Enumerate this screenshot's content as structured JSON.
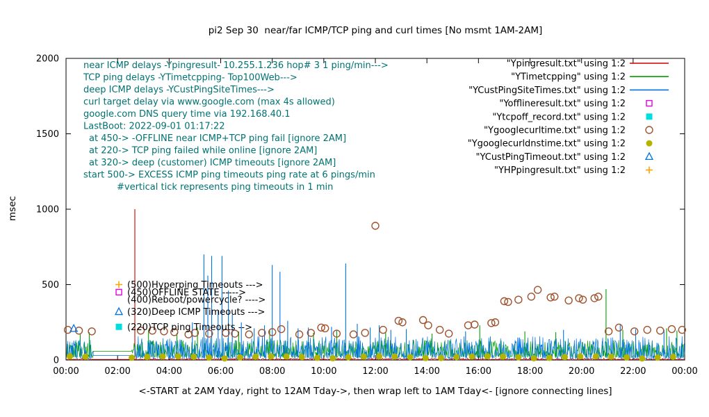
{
  "chart_data": {
    "type": "line",
    "title": "pi2 Sep 30  near/far ICMP/TCP ping and curl times [No msmt 1AM-2AM]",
    "xlabel": "<-START at 2AM Yday, right to 12AM Tday->, then wrap left to 1AM Tday<- [ignore connecting lines]",
    "ylabel": "msec",
    "xlim": [
      0,
      24
    ],
    "ylim": [
      0,
      2000
    ],
    "grid": false,
    "legend_position": "top-right-inside",
    "annotation_color": "#007272",
    "x_ticks": [
      {
        "t": 0,
        "label": "00:00"
      },
      {
        "t": 2,
        "label": "02:00"
      },
      {
        "t": 4,
        "label": "04:00"
      },
      {
        "t": 6,
        "label": "06:00"
      },
      {
        "t": 8,
        "label": "08:00"
      },
      {
        "t": 10,
        "label": "10:00"
      },
      {
        "t": 12,
        "label": "12:00"
      },
      {
        "t": 14,
        "label": "14:00"
      },
      {
        "t": 16,
        "label": "16:00"
      },
      {
        "t": 18,
        "label": "18:00"
      },
      {
        "t": 20,
        "label": "20:00"
      },
      {
        "t": 22,
        "label": "22:00"
      },
      {
        "t": 24,
        "label": "00:00"
      }
    ],
    "y_ticks": [
      0,
      500,
      1000,
      1500,
      2000
    ],
    "annotations": [
      {
        "text": "near ICMP delays -Ypingresult- 10.255.1.236 hop# 3 1 ping/min--->",
        "indent": 0
      },
      {
        "text": "TCP ping delays -YTimetcpping- Top100Web--->",
        "indent": 0
      },
      {
        "text": "deep ICMP delays -YCustPingSiteTimes--->",
        "indent": 0
      },
      {
        "text": "curl target delay via www.google.com (max 4s allowed)",
        "indent": 0
      },
      {
        "text": "google.com DNS query time via 192.168.40.1",
        "indent": 0
      },
      {
        "text": "LastBoot: 2022-09-01 01:17:22",
        "indent": 0
      },
      {
        "text": "at 450-> -OFFLINE near ICMP+TCP ping fail [ignore 2AM]",
        "indent": 8
      },
      {
        "text": "at 220-> TCP ping failed while online [ignore 2AM]",
        "indent": 8
      },
      {
        "text": "at 320-> deep (customer) ICMP timeouts [ignore 2AM]",
        "indent": 8
      },
      {
        "text": "start 500-> EXCESS ICMP ping timeouts ping rate at 6 pings/min",
        "indent": 0
      },
      {
        "text": "#vertical tick represents ping timeouts in 1 min",
        "indent": 48
      }
    ],
    "key_annotations": [
      {
        "x": 2.05,
        "y": 500,
        "marker": "plus",
        "color": "#ffa500",
        "text": "(500)Hyperping Timeouts --->"
      },
      {
        "x": 2.05,
        "y": 450,
        "marker": "open-square",
        "color": "#e600e6",
        "text": "(450)OFFLINE STATE ----->"
      },
      {
        "x": 2.05,
        "y": 400,
        "marker": "none",
        "color": "#000000",
        "text": "(400)Reboot/powercycle? ---->"
      },
      {
        "x": 2.05,
        "y": 320,
        "marker": "open-triangle",
        "color": "#0073e0",
        "text": "(320)Deep ICMP Timeouts --->"
      },
      {
        "x": 2.05,
        "y": 220,
        "marker": "filled-square",
        "color": "#00dede",
        "text": "(220)TCP ping Timeouts -->"
      }
    ],
    "legend": [
      {
        "label": "\"Ypingresult.txt\" using 1:2",
        "type": "line",
        "color": "#cc0000"
      },
      {
        "label": "\"YTimetcpping\" using 1:2",
        "type": "line",
        "color": "#00a000"
      },
      {
        "label": "\"YCustPingSiteTimes.txt\" using 1:2",
        "type": "line",
        "color": "#0073e0"
      },
      {
        "label": "\"Yofflineresult.txt\" using 1:2",
        "type": "marker",
        "marker": "open-square",
        "color": "#e600e6"
      },
      {
        "label": "\"Ytcpoff_record.txt\" using 1:2",
        "type": "marker",
        "marker": "filled-square",
        "color": "#00dede"
      },
      {
        "label": "\"Ygooglecurltime.txt\" using 1:2",
        "type": "marker",
        "marker": "open-circle",
        "color": "#a0522d"
      },
      {
        "label": "\"Ygooglecurldnstime.txt\" using 1:2",
        "type": "marker",
        "marker": "filled-circle",
        "color": "#b4b400"
      },
      {
        "label": "\"YCustPingTimeout.txt\" using 1:2",
        "type": "marker",
        "marker": "open-triangle",
        "color": "#0073e0"
      },
      {
        "label": "\"YHPpingresult.txt\" using 1:2",
        "type": "marker",
        "marker": "plus",
        "color": "#ffa500"
      }
    ],
    "series": [
      {
        "name": "Ypingresult",
        "type": "noisy-line",
        "color": "#cc0000",
        "seed": 11,
        "baseline": 2,
        "noise": 10,
        "gaps": [
          [
            1.05,
            2.55
          ]
        ],
        "gap_y": 4,
        "spikes": [
          [
            2.67,
            1000
          ]
        ]
      },
      {
        "name": "YTimetcpping",
        "type": "noisy-line",
        "color": "#00a000",
        "seed": 22,
        "baseline": 18,
        "noise": 115,
        "gaps": [
          [
            1.05,
            2.55
          ]
        ],
        "gap_y": 58,
        "spikes": [
          [
            0.55,
            170
          ],
          [
            0.9,
            185
          ],
          [
            3.2,
            200
          ],
          [
            4.3,
            180
          ],
          [
            5.1,
            215
          ],
          [
            6.7,
            190
          ],
          [
            7.9,
            200
          ],
          [
            9.6,
            180
          ],
          [
            10.5,
            195
          ],
          [
            12.4,
            185
          ],
          [
            14.2,
            175
          ],
          [
            16.05,
            230
          ],
          [
            17.8,
            190
          ],
          [
            19.0,
            185
          ],
          [
            20.95,
            470
          ],
          [
            21.6,
            200
          ],
          [
            23.3,
            210
          ],
          [
            23.7,
            195
          ]
        ]
      },
      {
        "name": "YCustPingSiteTimes",
        "type": "noisy-line",
        "color": "#0073e0",
        "seed": 33,
        "baseline": 8,
        "noise": 150,
        "gaps": [
          [
            1.05,
            2.55
          ]
        ],
        "gap_y": 30,
        "spikes": [
          [
            4.9,
            250
          ],
          [
            5.35,
            700
          ],
          [
            5.5,
            560
          ],
          [
            5.65,
            690
          ],
          [
            5.9,
            330
          ],
          [
            6.05,
            690
          ],
          [
            6.3,
            460
          ],
          [
            6.45,
            300
          ],
          [
            6.8,
            250
          ],
          [
            7.3,
            210
          ],
          [
            7.7,
            230
          ],
          [
            8.0,
            630
          ],
          [
            8.3,
            585
          ],
          [
            8.6,
            260
          ],
          [
            9.0,
            210
          ],
          [
            9.4,
            215
          ],
          [
            10.3,
            220
          ],
          [
            10.85,
            640
          ],
          [
            11.3,
            240
          ],
          [
            11.8,
            215
          ],
          [
            12.15,
            230
          ],
          [
            12.6,
            200
          ],
          [
            13.2,
            205
          ],
          [
            15.5,
            190
          ],
          [
            19.3,
            200
          ],
          [
            21.5,
            235
          ],
          [
            22.1,
            205
          ],
          [
            23.2,
            200
          ]
        ]
      },
      {
        "name": "Yofflineresult",
        "type": "scatter",
        "marker": "open-square",
        "color": "#e600e6",
        "points": []
      },
      {
        "name": "Ytcpoff_record",
        "type": "scatter",
        "marker": "filled-square",
        "color": "#00dede",
        "points": []
      },
      {
        "name": "Ygooglecurltime",
        "type": "scatter",
        "marker": "open-circle",
        "color": "#a0522d",
        "points": [
          [
            0.07,
            200
          ],
          [
            0.5,
            195
          ],
          [
            1.0,
            190
          ],
          [
            2.9,
            195
          ],
          [
            3.35,
            195
          ],
          [
            3.8,
            190
          ],
          [
            4.2,
            185
          ],
          [
            4.75,
            170
          ],
          [
            5.0,
            180
          ],
          [
            5.55,
            175
          ],
          [
            6.2,
            180
          ],
          [
            6.55,
            175
          ],
          [
            7.1,
            170
          ],
          [
            7.6,
            180
          ],
          [
            8.0,
            185
          ],
          [
            8.35,
            205
          ],
          [
            9.05,
            170
          ],
          [
            9.5,
            180
          ],
          [
            9.9,
            215
          ],
          [
            10.05,
            210
          ],
          [
            10.5,
            175
          ],
          [
            11.15,
            170
          ],
          [
            11.6,
            180
          ],
          [
            12.0,
            890
          ],
          [
            12.3,
            200
          ],
          [
            12.9,
            260
          ],
          [
            13.05,
            250
          ],
          [
            13.85,
            265
          ],
          [
            14.05,
            230
          ],
          [
            14.5,
            200
          ],
          [
            14.85,
            175
          ],
          [
            15.6,
            230
          ],
          [
            15.85,
            235
          ],
          [
            16.5,
            245
          ],
          [
            16.65,
            250
          ],
          [
            17.0,
            390
          ],
          [
            17.15,
            385
          ],
          [
            17.55,
            400
          ],
          [
            18.05,
            420
          ],
          [
            18.3,
            465
          ],
          [
            18.8,
            415
          ],
          [
            18.95,
            420
          ],
          [
            19.5,
            395
          ],
          [
            19.9,
            410
          ],
          [
            20.05,
            400
          ],
          [
            20.5,
            410
          ],
          [
            20.65,
            420
          ],
          [
            21.05,
            190
          ],
          [
            21.45,
            215
          ],
          [
            22.05,
            190
          ],
          [
            22.55,
            200
          ],
          [
            23.05,
            195
          ],
          [
            23.5,
            205
          ],
          [
            23.9,
            200
          ]
        ]
      },
      {
        "name": "Ygooglecurldnstime",
        "type": "scatter",
        "marker": "filled-circle",
        "color": "#b4b400",
        "points": [],
        "generate": {
          "start": 0.15,
          "end": 23.95,
          "step": 0.6,
          "y": 10,
          "jitter": 14,
          "skip": [
            [
              1.05,
              2.55
            ]
          ]
        }
      },
      {
        "name": "YCustPingTimeout",
        "type": "scatter",
        "marker": "open-triangle",
        "color": "#0073e0",
        "points": [
          [
            0.3,
            208
          ]
        ]
      },
      {
        "name": "YHPpingresult",
        "type": "scatter",
        "marker": "plus",
        "color": "#ffa500",
        "points": []
      }
    ]
  }
}
